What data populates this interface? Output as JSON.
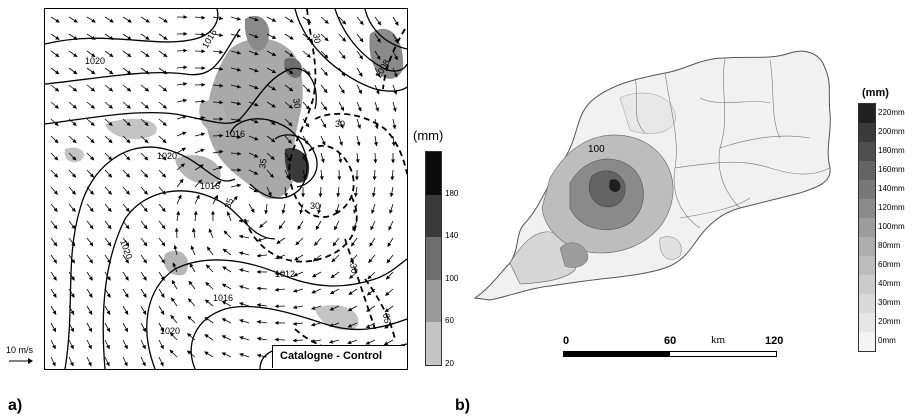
{
  "panel_a": {
    "label": "a)",
    "legend": "Catalogne - Control",
    "wind_reference": "10 m/s",
    "isobar_labels": [
      "1020",
      "1016",
      "1016",
      "1020",
      "1016",
      "1020",
      "1012",
      "1016",
      "1020",
      "1008"
    ],
    "dashed_labels": [
      "30",
      "30",
      "35",
      "30",
      "30",
      "35",
      "30",
      "35"
    ],
    "colorbar": {
      "unit": "(mm)",
      "ticks": [
        "180",
        "140",
        "100",
        "60",
        "20"
      ],
      "colors": [
        "#0b0b0b",
        "#3a3a3a",
        "#6e6e6e",
        "#9a9a9a",
        "#c4c4c4"
      ]
    }
  },
  "panel_b": {
    "label": "b)",
    "contour_label": "100",
    "colorbar": {
      "unit": "(mm)",
      "ticks": [
        "220mm",
        "200mm",
        "180mm",
        "160mm",
        "140mm",
        "120mm",
        "100mm",
        "80mm",
        "60mm",
        "40mm",
        "30mm",
        "20mm",
        "0mm"
      ],
      "colors": [
        "#202020",
        "#3a3a3a",
        "#4f4f4f",
        "#646464",
        "#787878",
        "#8a8a8a",
        "#9c9c9c",
        "#adadad",
        "#bdbdbd",
        "#cbcbcb",
        "#d9d9d9",
        "#e6e6e6",
        "#f4f4f4"
      ]
    },
    "scale": {
      "start": "0",
      "mid": "60",
      "end": "120",
      "unit": "km"
    }
  }
}
